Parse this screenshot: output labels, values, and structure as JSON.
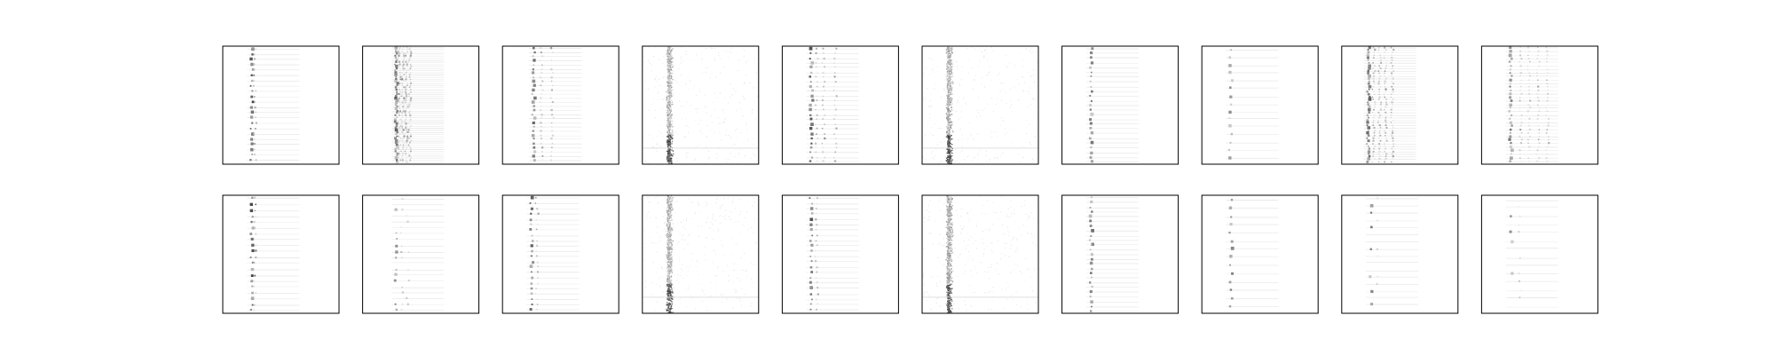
{
  "figure": {
    "background": "#ffffff",
    "frame_color": "#000000"
  },
  "chart_data": {
    "type": "heatmap",
    "grid": false,
    "colormap": [
      "#ffffff",
      "#000000"
    ],
    "rows": 2,
    "cols": 10,
    "panels": [
      {
        "pattern": "dots",
        "cols": [
          0.24,
          0.27
        ],
        "spacing": 0.045,
        "strength": 0.75
      },
      {
        "pattern": "dense",
        "cols": [
          0.28,
          0.31,
          0.34,
          0.37,
          0.4
        ],
        "spacing": 0.018,
        "strength": 0.65
      },
      {
        "pattern": "dots",
        "cols": [
          0.26,
          0.33,
          0.42
        ],
        "spacing": 0.035,
        "strength": 0.6
      },
      {
        "pattern": "band",
        "cols": [
          0.22
        ],
        "spacing": 0.02,
        "strength": 0.55
      },
      {
        "pattern": "dots",
        "cols": [
          0.24,
          0.29,
          0.35,
          0.45
        ],
        "spacing": 0.04,
        "strength": 0.7
      },
      {
        "pattern": "band",
        "cols": [
          0.22
        ],
        "spacing": 0.015,
        "strength": 0.6
      },
      {
        "pattern": "dots",
        "cols": [
          0.24
        ],
        "spacing": 0.04,
        "strength": 0.55
      },
      {
        "pattern": "dots",
        "cols": [
          0.24
        ],
        "spacing": 0.065,
        "strength": 0.45
      },
      {
        "pattern": "dense",
        "cols": [
          0.22,
          0.27,
          0.32,
          0.37,
          0.43
        ],
        "spacing": 0.022,
        "strength": 0.65
      },
      {
        "pattern": "dense",
        "cols": [
          0.24,
          0.33,
          0.4,
          0.48,
          0.56
        ],
        "spacing": 0.03,
        "strength": 0.55
      },
      {
        "pattern": "dots",
        "cols": [
          0.24,
          0.27
        ],
        "spacing": 0.05,
        "strength": 0.8
      },
      {
        "pattern": "sparse",
        "cols": [
          0.28,
          0.33,
          0.38
        ],
        "spacing": 0.05,
        "strength": 0.6
      },
      {
        "pattern": "dots",
        "cols": [
          0.24,
          0.29
        ],
        "spacing": 0.045,
        "strength": 0.65
      },
      {
        "pattern": "band",
        "cols": [
          0.22
        ],
        "spacing": 0.02,
        "strength": 0.55
      },
      {
        "pattern": "dots",
        "cols": [
          0.24,
          0.29
        ],
        "spacing": 0.045,
        "strength": 0.7
      },
      {
        "pattern": "band",
        "cols": [
          0.22
        ],
        "spacing": 0.015,
        "strength": 0.6
      },
      {
        "pattern": "dots",
        "cols": [
          0.24
        ],
        "spacing": 0.04,
        "strength": 0.6
      },
      {
        "pattern": "dots",
        "cols": [
          0.24
        ],
        "spacing": 0.07,
        "strength": 0.5
      },
      {
        "pattern": "sparse",
        "cols": [
          0.24,
          0.3
        ],
        "spacing": 0.06,
        "strength": 0.55
      },
      {
        "pattern": "sparse",
        "cols": [
          0.24,
          0.32
        ],
        "spacing": 0.07,
        "strength": 0.5
      }
    ]
  }
}
